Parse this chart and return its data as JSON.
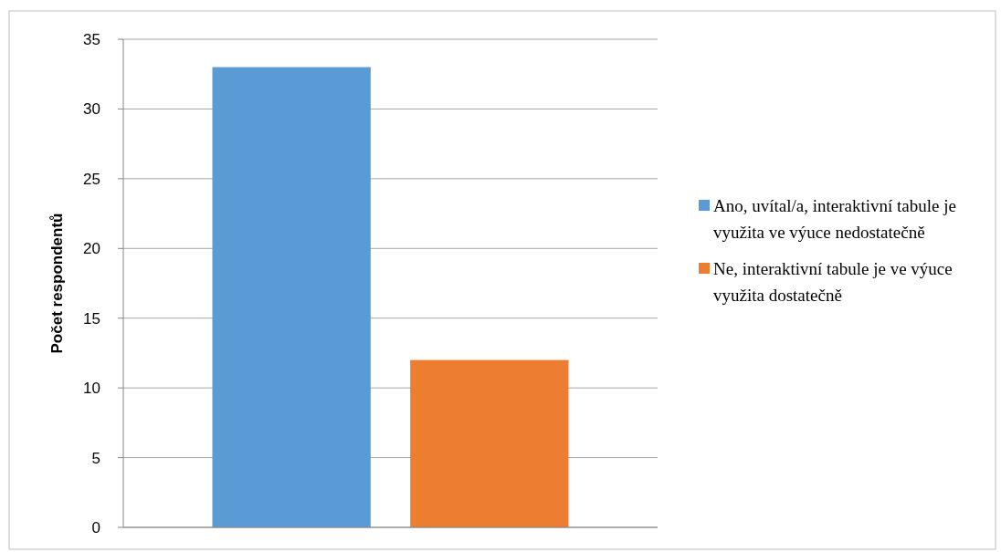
{
  "chart_data": {
    "type": "bar",
    "ylabel": "Počet respondentů",
    "categories": [
      null
    ],
    "series": [
      {
        "name": "Ano, uvítal/a, interaktivní tabule je využita ve výuce nedostatečně",
        "color": "#5b9bd5",
        "values": [
          33
        ]
      },
      {
        "name": "Ne, interaktivní tabule je ve výuce využita dostatečně",
        "color": "#ed7d31",
        "values": [
          12
        ]
      }
    ],
    "ylim": [
      0,
      35
    ],
    "yticks": [
      0,
      5,
      10,
      15,
      20,
      25,
      30,
      35
    ],
    "grid": "y",
    "legend": "right"
  }
}
